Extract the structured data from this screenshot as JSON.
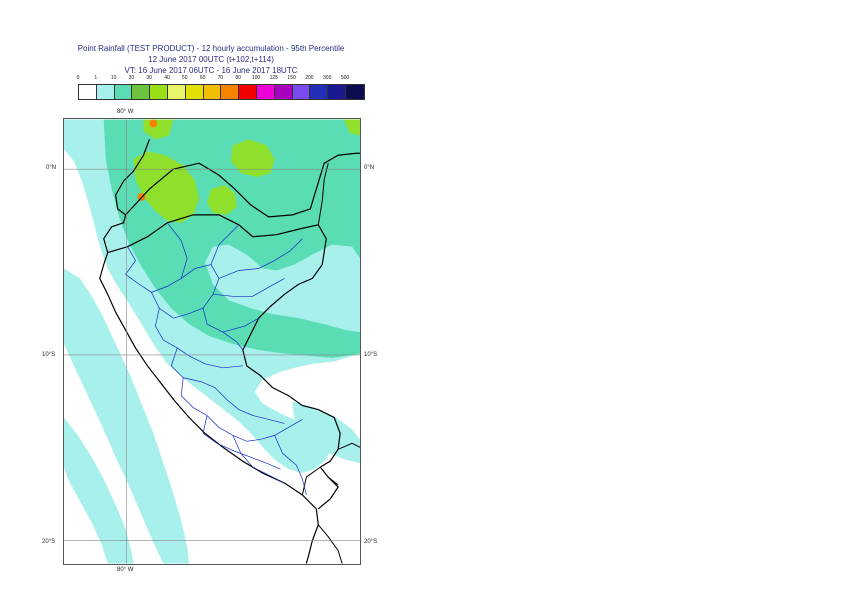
{
  "title": {
    "line1": "Point Rainfall (TEST PRODUCT) - 12 hourly accumulation - 95th Percentile",
    "line2": "12 June 2017 00UTC (t+102,t+114)",
    "line3": "VT: 16 June 2017 06UTC - 16 June 2017 18UTC"
  },
  "legend": {
    "thresholds": [
      "0",
      "1",
      "10",
      "20",
      "30",
      "40",
      "50",
      "60",
      "70",
      "80",
      "100",
      "125",
      "150",
      "200",
      "300",
      "500"
    ],
    "colors": [
      "#ffffff",
      "#a8f0ec",
      "#5adcb4",
      "#6cc23c",
      "#98e014",
      "#e8f46c",
      "#e2e000",
      "#f2be00",
      "#f78200",
      "#f20000",
      "#ee00d8",
      "#a800c0",
      "#7a4cf0",
      "#2230b8",
      "#1a1a90",
      "#0c0c50"
    ]
  },
  "axes": {
    "lon_top": "80° W",
    "lon_bottom": "80° W",
    "lat_0": "0°N",
    "lat_0_right": "0°N",
    "lat_10": "10°S",
    "lat_10_right": "10°S",
    "lat_20": "20°S",
    "lat_20_right": "20°S"
  },
  "map": {
    "ocean_color": "#ffffff",
    "rain_low_color": "#a8f0ec",
    "rain_mid_color": "#5adcb4",
    "rain_high_color": "#98e014",
    "rain_peak_color": "#f78200",
    "coast_color": "#000000",
    "border_color": "#1428c8"
  }
}
